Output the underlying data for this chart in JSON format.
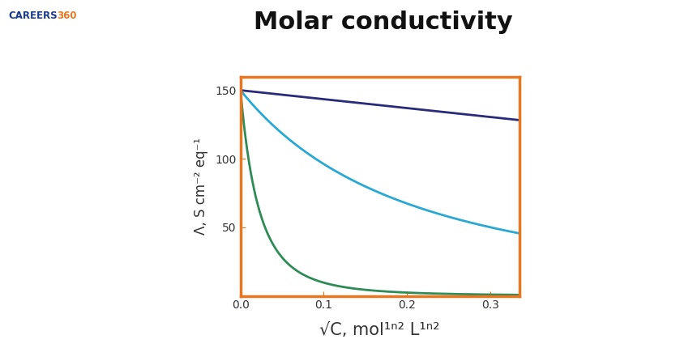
{
  "title": "Molar conductivity",
  "title_fontsize": 22,
  "title_fontweight": "bold",
  "title_color": "#111111",
  "xlabel": "√C, mol¹ⁿ² L¹ⁿ²",
  "ylabel": "Λ, S cm⁻² eq⁻¹",
  "xlabel_fontsize": 15,
  "ylabel_fontsize": 12,
  "xlim": [
    0,
    0.335
  ],
  "ylim": [
    0,
    160
  ],
  "xticks": [
    0,
    0.1,
    0.2,
    0.3
  ],
  "yticks": [
    50,
    100,
    150
  ],
  "spine_color": "#E87722",
  "spine_linewidth": 2.5,
  "background_color": "#ffffff",
  "curve1_color": "#2a2a7a",
  "curve2_color": "#29a8d4",
  "curve3_color": "#2e8b57",
  "logo_text_careers": "CAREERS",
  "logo_text_360": "360",
  "logo_color_careers": "#1a3a8a",
  "logo_color_360": "#e87722"
}
